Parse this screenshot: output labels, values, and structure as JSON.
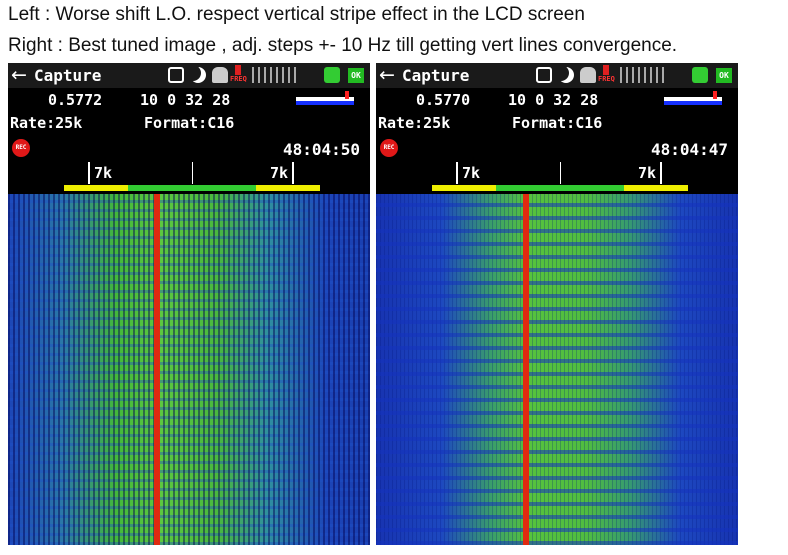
{
  "caption": {
    "line1": "Left : Worse shift L.O. respect vertical stripe effect in the LCD screen",
    "line2": "Right : Best tuned image , adj. steps +- 10 Hz till getting vert lines convergence."
  },
  "panels": [
    {
      "title": "Capture",
      "freq_badge": "FREQ",
      "ok_badge": "OK",
      "frequency": "0.5772",
      "fields": "10 0 32 28",
      "rate": "Rate:25k",
      "format": "Format:C16",
      "rec": "REC",
      "clock": "48:04:50",
      "scale_left": "7k",
      "scale_right": "7k"
    },
    {
      "title": "Capture",
      "freq_badge": "FREQ",
      "ok_badge": "OK",
      "frequency": "0.5770",
      "fields": "10 0 32 28",
      "rate": "Rate:25k",
      "format": "Format:C16",
      "rec": "REC",
      "clock": "48:04:47",
      "scale_left": "7k",
      "scale_right": "7k"
    }
  ]
}
